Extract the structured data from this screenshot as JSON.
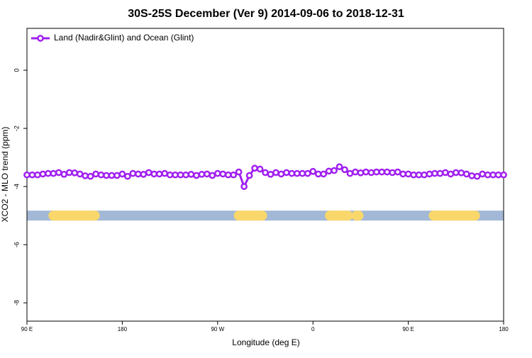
{
  "chart_data": {
    "type": "line",
    "title": "30S-25S December (Ver 9)   2014-09-06 to 2018-12-31",
    "xlabel": "Longitude (deg E)",
    "ylabel": "XCO2 - MLO trend (ppm)",
    "xlim": [
      90,
      540
    ],
    "ylim": [
      -8.63,
      1.44
    ],
    "xticks": [
      {
        "value": 90,
        "label": "90 E"
      },
      {
        "value": 180,
        "label": "180"
      },
      {
        "value": 270,
        "label": "90 W"
      },
      {
        "value": 360,
        "label": "0"
      },
      {
        "value": 450,
        "label": "90 E"
      },
      {
        "value": 540,
        "label": "180"
      }
    ],
    "yticks": [
      0,
      -2,
      -4,
      -6,
      -8
    ],
    "legend_position": "top-left",
    "x": [
      90,
      95,
      100,
      105,
      110,
      115,
      120,
      125,
      130,
      135,
      140,
      145,
      150,
      155,
      160,
      165,
      170,
      175,
      180,
      185,
      190,
      195,
      200,
      205,
      210,
      215,
      220,
      225,
      230,
      235,
      240,
      245,
      250,
      255,
      260,
      265,
      270,
      275,
      280,
      285,
      290,
      295,
      300,
      305,
      310,
      315,
      320,
      325,
      330,
      335,
      340,
      345,
      350,
      355,
      360,
      365,
      370,
      375,
      380,
      385,
      390,
      395,
      400,
      405,
      410,
      415,
      420,
      425,
      430,
      435,
      440,
      445,
      450,
      455,
      460,
      465,
      470,
      475,
      480,
      485,
      490,
      495,
      500,
      505,
      510,
      515,
      520,
      525,
      530,
      535,
      540
    ],
    "series": [
      {
        "name": "Land (Nadir&Glint) and Ocean (Glint)",
        "color": "#a020f0",
        "values": [
          -3.6,
          -3.6,
          -3.6,
          -3.57,
          -3.55,
          -3.55,
          -3.52,
          -3.58,
          -3.52,
          -3.53,
          -3.57,
          -3.63,
          -3.65,
          -3.57,
          -3.6,
          -3.62,
          -3.62,
          -3.62,
          -3.57,
          -3.65,
          -3.55,
          -3.57,
          -3.58,
          -3.52,
          -3.57,
          -3.57,
          -3.55,
          -3.6,
          -3.6,
          -3.6,
          -3.6,
          -3.58,
          -3.62,
          -3.58,
          -3.57,
          -3.62,
          -3.55,
          -3.57,
          -3.6,
          -3.6,
          -3.5,
          -4.0,
          -3.62,
          -3.37,
          -3.4,
          -3.52,
          -3.58,
          -3.52,
          -3.57,
          -3.52,
          -3.55,
          -3.55,
          -3.55,
          -3.55,
          -3.48,
          -3.57,
          -3.57,
          -3.47,
          -3.45,
          -3.32,
          -3.42,
          -3.55,
          -3.5,
          -3.53,
          -3.5,
          -3.52,
          -3.5,
          -3.5,
          -3.5,
          -3.52,
          -3.5,
          -3.57,
          -3.57,
          -3.6,
          -3.6,
          -3.6,
          -3.57,
          -3.55,
          -3.55,
          -3.52,
          -3.57,
          -3.52,
          -3.53,
          -3.57,
          -3.63,
          -3.65,
          -3.57,
          -3.6,
          -3.6,
          -3.6,
          -3.6
        ]
      }
    ],
    "surface_band": {
      "y": -5,
      "ocean_color": "#a3b8d6",
      "land_color": "#fad76a",
      "land_segments": [
        [
          115,
          154
        ],
        [
          290,
          312
        ],
        [
          376,
          393
        ],
        [
          401,
          403
        ],
        [
          474,
          513
        ]
      ]
    }
  }
}
